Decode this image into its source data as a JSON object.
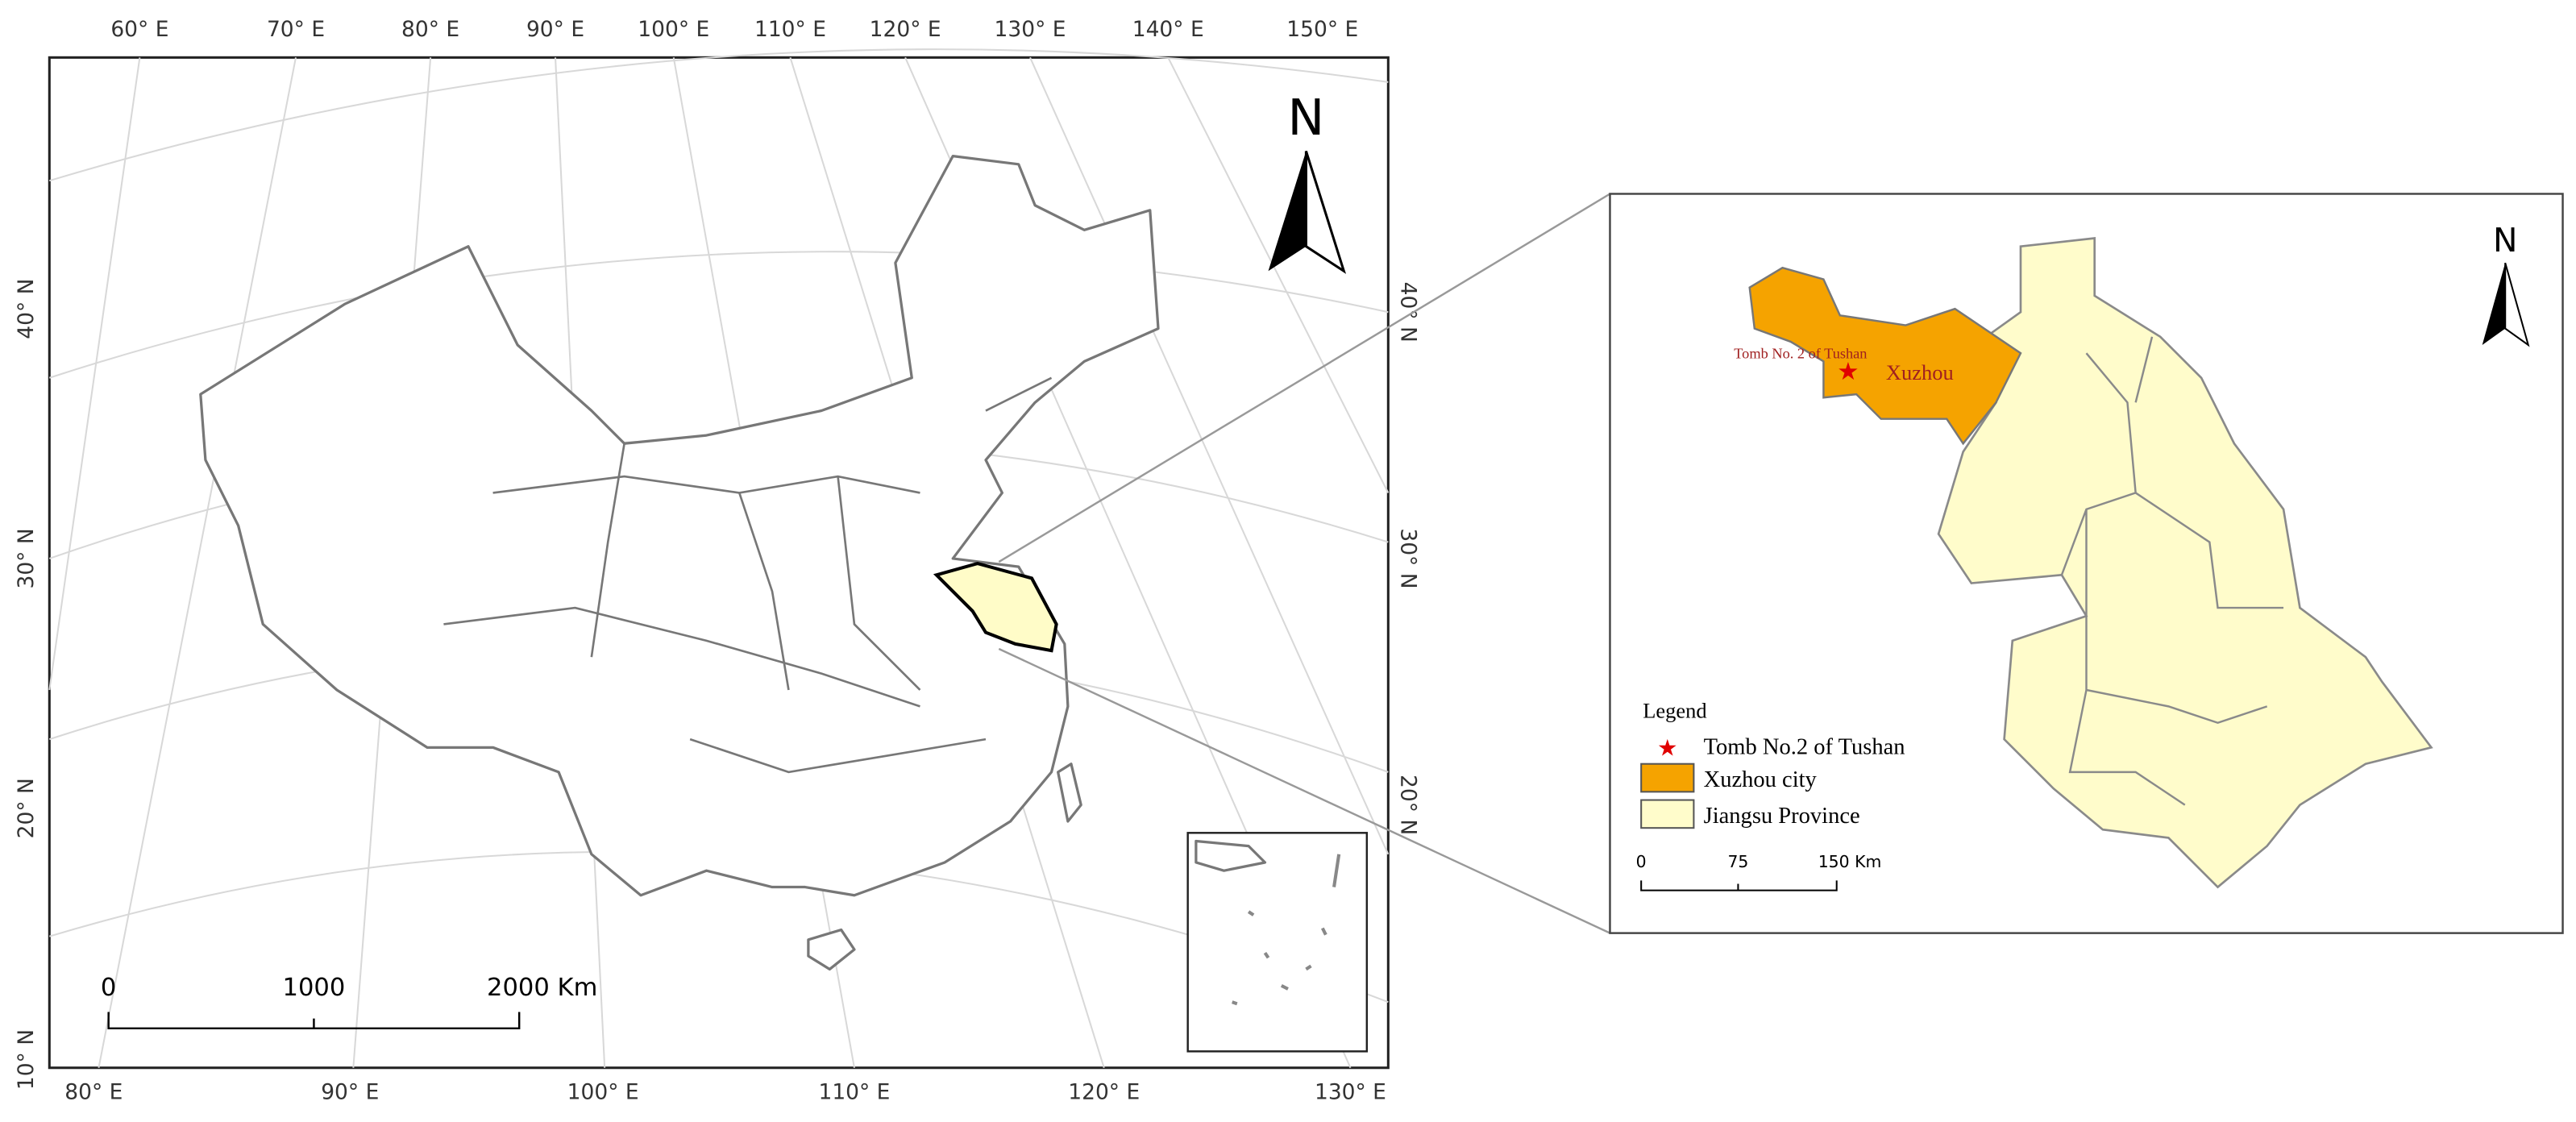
{
  "map": {
    "lon_labels_top": [
      "60° E",
      "70° E",
      "80° E",
      "90° E",
      "100° E",
      "110° E",
      "120° E",
      "130° E",
      "140° E",
      "150° E"
    ],
    "lon_labels_bottom": [
      "80° E",
      "90° E",
      "100° E",
      "110° E",
      "120° E",
      "130° E"
    ],
    "lat_labels_left": [
      "40° N",
      "30° N",
      "20° N",
      "10° N"
    ],
    "lat_labels_right": [
      "40° N",
      "30° N",
      "20° N"
    ],
    "north": "N",
    "scale_labels": [
      "0",
      "1000",
      "2000 Km"
    ],
    "inset": {
      "north": "N",
      "site_label": "Tomb No. 2 of Tushan",
      "city_label": "Xuzhou",
      "legend_title": "Legend",
      "legend_items": [
        "Tomb No.2 of Tushan",
        "Xuzhou city",
        "Jiangsu Province"
      ],
      "scale_labels": [
        "0",
        "75",
        "150 Km"
      ]
    }
  }
}
